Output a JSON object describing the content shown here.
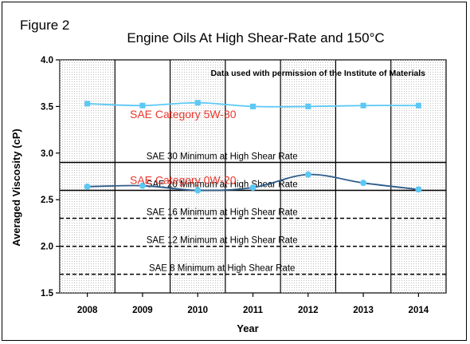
{
  "chart_data": {
    "type": "line",
    "figure_label": "Figure 2",
    "title": "Engine Oils At High Shear-Rate and 150°C",
    "annotation": "Data used with permission of the Institute of Materials",
    "xlabel": "Year",
    "ylabel": "Averaged Viscosity (cP)",
    "categories": [
      "2008",
      "2009",
      "2010",
      "2011",
      "2012",
      "2013",
      "2014"
    ],
    "ylim": [
      1.5,
      4.0
    ],
    "yticks": [
      "1.5",
      "2.0",
      "2.5",
      "3.0",
      "3.5",
      "4.0"
    ],
    "grid": "vertical-dotted-background",
    "series": [
      {
        "name": "SAE Category 5W-30",
        "values": [
          3.53,
          3.51,
          3.54,
          3.5,
          3.5,
          3.51,
          3.51
        ],
        "line_color": "#5bc8f5",
        "marker_color": "#5bc8f5",
        "marker": "square"
      },
      {
        "name": "SAE Category 0W-20",
        "values": [
          2.64,
          2.65,
          2.6,
          2.63,
          2.77,
          2.68,
          2.61
        ],
        "line_color": "#2e5c8a",
        "marker_color": "#5bc8f5",
        "marker": "circle"
      }
    ],
    "reference_lines": [
      {
        "label": "SAE 30 Minimum at High Shear Rate",
        "value": 2.9,
        "style": "solid"
      },
      {
        "label": "SAE 20 Minimum at High Shear Rate",
        "value": 2.6,
        "style": "solid"
      },
      {
        "label": "SAE 16 Minimum at High Shear Rate",
        "value": 2.3,
        "style": "dashed"
      },
      {
        "label": "SAE 12 Minimum at High Shear Rate",
        "value": 2.0,
        "style": "dashed"
      },
      {
        "label": "SAE 8 Minimum at High Shear Rate",
        "value": 1.7,
        "style": "dashed"
      }
    ],
    "series_label_color": "#e8392e"
  }
}
